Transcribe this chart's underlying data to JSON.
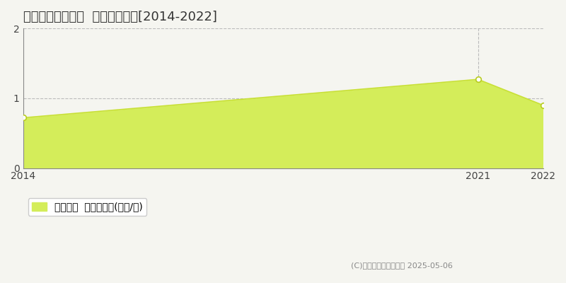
{
  "title": "上川郡剣淵町緑町  土地価格推移[2014-2022]",
  "years": [
    2014,
    2021,
    2022
  ],
  "values": [
    0.72,
    1.27,
    0.9
  ],
  "area_color": "#d4ed5a",
  "area_alpha": 1.0,
  "line_color": "#c8e035",
  "marker_color": "#ffffff",
  "marker_edge_color": "#b8cc20",
  "ylim": [
    0,
    2
  ],
  "xlim": [
    2014,
    2022
  ],
  "yticks": [
    0,
    1,
    2
  ],
  "xticks": [
    2014,
    2021,
    2022
  ],
  "grid_color": "#bbbbbb",
  "grid_style": "--",
  "legend_label": "土地価格  平均坪単価(万円/坪)",
  "copyright_text": "(C)土地価格ドットコム 2025-05-06",
  "background_color": "#f5f5f0",
  "plot_bg_color": "#f5f5f0",
  "title_fontsize": 13,
  "tick_fontsize": 10,
  "legend_fontsize": 10,
  "copyright_fontsize": 8
}
